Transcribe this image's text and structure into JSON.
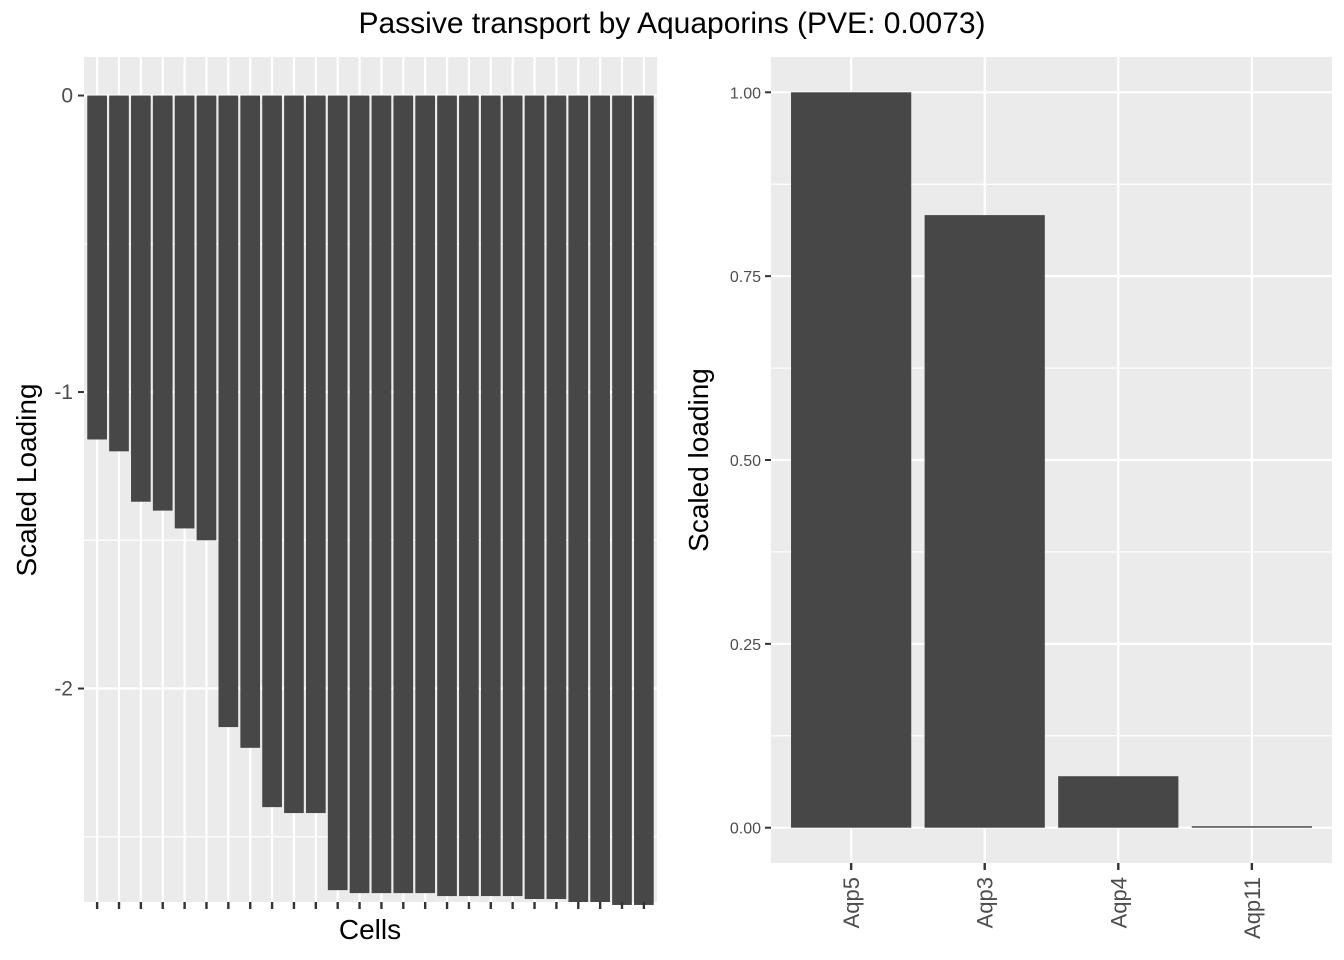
{
  "title": "Passive transport by Aquaporins (PVE: 0.0073)",
  "chart_data": [
    {
      "type": "bar",
      "xlabel": "Cells",
      "ylabel": "Scaled Loading",
      "ylim": [
        -2.72,
        0.13
      ],
      "yticks": [
        0,
        -1,
        -2
      ],
      "ytick_labels": [
        "0",
        "-1",
        "-2"
      ],
      "grid": true,
      "values": [
        -1.16,
        -1.2,
        -1.37,
        -1.4,
        -1.46,
        -1.5,
        -2.13,
        -2.2,
        -2.4,
        -2.42,
        -2.42,
        -2.68,
        -2.69,
        -2.69,
        -2.69,
        -2.69,
        -2.7,
        -2.7,
        -2.7,
        -2.7,
        -2.71,
        -2.71,
        -2.72,
        -2.72,
        -2.73,
        -2.73
      ]
    },
    {
      "type": "bar",
      "xlabel": "",
      "ylabel": "Scaled loading",
      "ylim": [
        -0.048,
        1.048
      ],
      "yticks": [
        0,
        0.25,
        0.5,
        0.75,
        1.0
      ],
      "ytick_labels": [
        "0.00",
        "0.25",
        "0.50",
        "0.75",
        "1.00"
      ],
      "grid": true,
      "categories": [
        "Aqp5",
        "Aqp3",
        "Aqp4",
        "Aqp11"
      ],
      "values": [
        1.0,
        0.833,
        0.07,
        0.002
      ]
    }
  ],
  "colors": {
    "panel_background": "#ebebeb",
    "grid_major": "#ffffff",
    "bar_fill": "#474747",
    "axis_text": "#4d4d4d",
    "title_text": "#000000"
  }
}
